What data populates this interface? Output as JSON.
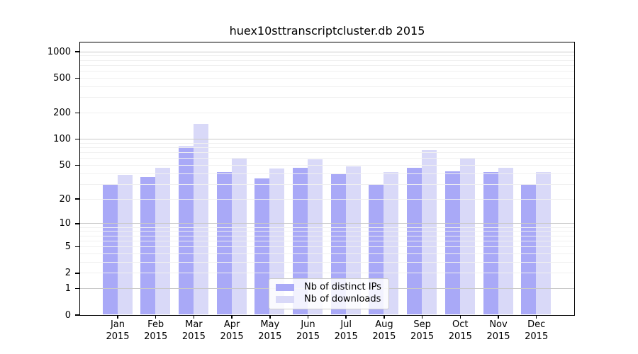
{
  "chart_data": {
    "type": "bar",
    "title": "huex10sttranscriptcluster.db 2015",
    "categories": [
      "Jan",
      "Feb",
      "Mar",
      "Apr",
      "May",
      "Jun",
      "Jul",
      "Aug",
      "Sep",
      "Oct",
      "Nov",
      "Dec"
    ],
    "year_label": "2015",
    "series": [
      {
        "name": "Nb of distinct IPs",
        "color": "#a9a9f7",
        "values": [
          30,
          36,
          82,
          41,
          35,
          46,
          40,
          29,
          46,
          42,
          41,
          30
        ]
      },
      {
        "name": "Nb of downloads",
        "color": "#d9d9f8",
        "values": [
          38,
          46,
          150,
          59,
          45,
          58,
          48,
          41,
          74,
          59,
          46,
          41
        ]
      }
    ],
    "y_axis": {
      "scale": "log10(1+x)",
      "tick_values": [
        0,
        1,
        2,
        5,
        10,
        20,
        50,
        100,
        200,
        500,
        1000
      ],
      "range_max": 1280
    },
    "grid": "on",
    "legend_position": "bottom-center"
  }
}
